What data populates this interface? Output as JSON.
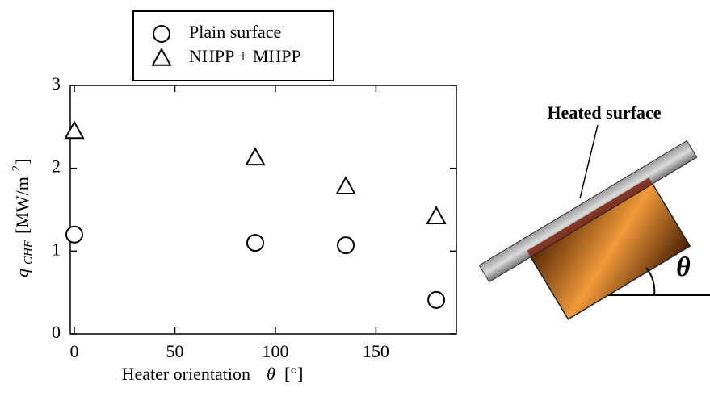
{
  "chart_data": {
    "type": "scatter",
    "x_label": "Heater orientation",
    "x_label_symbol": "θ",
    "x_label_unit": "[°]",
    "y_label_symbol": "q",
    "y_label_subscript": "CHF",
    "y_label_unit": "[MW/m",
    "y_label_superscript": "2",
    "y_label_close": "]",
    "x": [
      0,
      90,
      135,
      180
    ],
    "series": [
      {
        "name": "Plain surface",
        "marker": "circle",
        "color": "#000000",
        "values": [
          1.2,
          1.1,
          1.07,
          0.41
        ]
      },
      {
        "name": "NHPP + MHPP",
        "marker": "triangle",
        "color": "#000000",
        "values": [
          2.45,
          2.13,
          1.78,
          1.42
        ]
      }
    ],
    "xlim": [
      -2,
      190
    ],
    "xticks": [
      0,
      50,
      100,
      150
    ],
    "ylim": [
      0,
      3
    ],
    "yticks": [
      0,
      1,
      2,
      3
    ]
  },
  "diagram": {
    "label": "Heated surface",
    "angle": "θ"
  }
}
